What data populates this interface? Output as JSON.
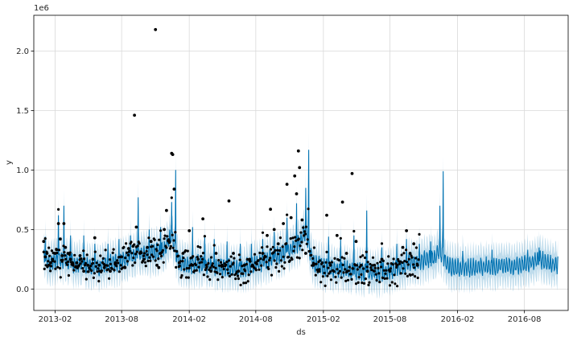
{
  "chart_data": {
    "type": "line",
    "title": "",
    "xlabel": "ds",
    "ylabel": "y",
    "scale_label": "1e6",
    "xlim": [
      "2012-12-05",
      "2016-11-28"
    ],
    "ylim": [
      -0.18,
      2.3
    ],
    "x_tick_labels": [
      "2013-02",
      "2013-08",
      "2014-02",
      "2014-08",
      "2015-02",
      "2015-08",
      "2016-02",
      "2016-08"
    ],
    "x_tick_dates": [
      "2013-02-01",
      "2013-08-01",
      "2014-02-01",
      "2014-08-01",
      "2015-02-01",
      "2015-08-01",
      "2016-02-01",
      "2016-08-01"
    ],
    "y_tick_values": [
      0.0,
      0.5,
      1.0,
      1.5,
      2.0
    ],
    "y_tick_labels": [
      "0.0",
      "0.5",
      "1.0",
      "1.5",
      "2.0"
    ],
    "grid": true,
    "colors": {
      "forecast": "#0072B2",
      "interval": "#0072B2",
      "actual": "#000000"
    },
    "series": [
      {
        "kind": "forecast",
        "points": [
          [
            "2013-01-01",
            0.27
          ],
          [
            "2013-01-15",
            0.22
          ],
          [
            "2013-02-01",
            0.24
          ],
          [
            "2013-02-15",
            0.25
          ],
          [
            "2013-03-01",
            0.24
          ],
          [
            "2013-03-15",
            0.22
          ],
          [
            "2013-04-01",
            0.21
          ],
          [
            "2013-04-15",
            0.21
          ],
          [
            "2013-05-01",
            0.2
          ],
          [
            "2013-05-15",
            0.2
          ],
          [
            "2013-06-01",
            0.19
          ],
          [
            "2013-06-15",
            0.2
          ],
          [
            "2013-07-01",
            0.21
          ],
          [
            "2013-07-15",
            0.22
          ],
          [
            "2013-08-01",
            0.24
          ],
          [
            "2013-08-15",
            0.26
          ],
          [
            "2013-09-01",
            0.28
          ],
          [
            "2013-09-15",
            0.29
          ],
          [
            "2013-10-01",
            0.3
          ],
          [
            "2013-10-15",
            0.3
          ],
          [
            "2013-11-01",
            0.31
          ],
          [
            "2013-11-15",
            0.32
          ],
          [
            "2013-12-01",
            0.36
          ],
          [
            "2013-12-15",
            0.45
          ],
          [
            "2014-01-01",
            0.25
          ],
          [
            "2014-01-15",
            0.21
          ],
          [
            "2014-02-01",
            0.2
          ],
          [
            "2014-02-15",
            0.21
          ],
          [
            "2014-03-01",
            0.21
          ],
          [
            "2014-03-15",
            0.2
          ],
          [
            "2014-04-01",
            0.2
          ],
          [
            "2014-04-15",
            0.19
          ],
          [
            "2014-05-01",
            0.18
          ],
          [
            "2014-05-15",
            0.18
          ],
          [
            "2014-06-01",
            0.17
          ],
          [
            "2014-06-15",
            0.17
          ],
          [
            "2014-07-01",
            0.18
          ],
          [
            "2014-07-15",
            0.19
          ],
          [
            "2014-08-01",
            0.2
          ],
          [
            "2014-08-15",
            0.22
          ],
          [
            "2014-09-01",
            0.25
          ],
          [
            "2014-09-15",
            0.27
          ],
          [
            "2014-10-01",
            0.29
          ],
          [
            "2014-10-15",
            0.3
          ],
          [
            "2014-11-01",
            0.33
          ],
          [
            "2014-11-15",
            0.36
          ],
          [
            "2014-12-01",
            0.4
          ],
          [
            "2014-12-15",
            0.5
          ],
          [
            "2015-01-01",
            0.25
          ],
          [
            "2015-01-15",
            0.2
          ],
          [
            "2015-02-01",
            0.18
          ],
          [
            "2015-02-15",
            0.17
          ],
          [
            "2015-03-01",
            0.17
          ],
          [
            "2015-03-15",
            0.16
          ],
          [
            "2015-04-01",
            0.16
          ],
          [
            "2015-04-15",
            0.15
          ],
          [
            "2015-05-01",
            0.15
          ],
          [
            "2015-05-15",
            0.15
          ],
          [
            "2015-06-01",
            0.14
          ],
          [
            "2015-06-15",
            0.14
          ],
          [
            "2015-07-01",
            0.14
          ],
          [
            "2015-07-15",
            0.14
          ],
          [
            "2015-08-01",
            0.15
          ],
          [
            "2015-08-15",
            0.17
          ],
          [
            "2015-09-01",
            0.19
          ],
          [
            "2015-09-15",
            0.21
          ],
          [
            "2015-10-01",
            0.22
          ],
          [
            "2015-10-15",
            0.23
          ],
          [
            "2015-11-01",
            0.24
          ],
          [
            "2015-11-15",
            0.25
          ],
          [
            "2015-12-01",
            0.27
          ],
          [
            "2015-12-15",
            0.32
          ],
          [
            "2016-01-01",
            0.22
          ],
          [
            "2016-01-15",
            0.19
          ],
          [
            "2016-02-01",
            0.18
          ],
          [
            "2016-02-15",
            0.18
          ],
          [
            "2016-03-01",
            0.18
          ],
          [
            "2016-03-15",
            0.18
          ],
          [
            "2016-04-01",
            0.19
          ],
          [
            "2016-04-15",
            0.19
          ],
          [
            "2016-05-01",
            0.19
          ],
          [
            "2016-05-15",
            0.19
          ],
          [
            "2016-06-01",
            0.2
          ],
          [
            "2016-06-15",
            0.2
          ],
          [
            "2016-07-01",
            0.19
          ],
          [
            "2016-07-15",
            0.2
          ],
          [
            "2016-08-01",
            0.21
          ],
          [
            "2016-08-15",
            0.22
          ],
          [
            "2016-09-01",
            0.24
          ],
          [
            "2016-09-15",
            0.25
          ],
          [
            "2016-10-01",
            0.23
          ],
          [
            "2016-10-15",
            0.21
          ],
          [
            "2016-10-31",
            0.2
          ]
        ],
        "spikes": [
          [
            "2013-01-05",
            0.44
          ],
          [
            "2013-02-10",
            0.62
          ],
          [
            "2013-02-25",
            0.7
          ],
          [
            "2013-03-15",
            0.45
          ],
          [
            "2013-04-20",
            0.45
          ],
          [
            "2013-05-20",
            0.38
          ],
          [
            "2013-06-25",
            0.38
          ],
          [
            "2013-07-25",
            0.42
          ],
          [
            "2013-08-25",
            0.45
          ],
          [
            "2013-09-15",
            0.77
          ],
          [
            "2013-10-15",
            0.5
          ],
          [
            "2013-11-15",
            0.52
          ],
          [
            "2013-12-15",
            0.73
          ],
          [
            "2013-12-26",
            1.0
          ],
          [
            "2014-02-10",
            0.52
          ],
          [
            "2014-03-15",
            0.45
          ],
          [
            "2014-04-10",
            0.42
          ],
          [
            "2014-05-15",
            0.4
          ],
          [
            "2014-06-20",
            0.38
          ],
          [
            "2014-07-20",
            0.38
          ],
          [
            "2014-08-20",
            0.42
          ],
          [
            "2014-09-20",
            0.48
          ],
          [
            "2014-10-25",
            0.6
          ],
          [
            "2014-11-20",
            0.72
          ],
          [
            "2014-12-15",
            0.85
          ],
          [
            "2014-12-23",
            1.17
          ],
          [
            "2015-02-15",
            0.44
          ],
          [
            "2015-03-20",
            0.42
          ],
          [
            "2015-04-25",
            0.45
          ],
          [
            "2015-05-30",
            0.66
          ],
          [
            "2015-07-10",
            0.35
          ],
          [
            "2015-08-20",
            0.38
          ],
          [
            "2015-09-15",
            0.42
          ],
          [
            "2015-10-20",
            0.38
          ],
          [
            "2015-11-20",
            0.4
          ],
          [
            "2015-12-15",
            0.7
          ],
          [
            "2015-12-24",
            0.99
          ],
          [
            "2016-02-15",
            0.32
          ],
          [
            "2016-05-05",
            0.33
          ],
          [
            "2016-08-10",
            0.33
          ],
          [
            "2016-09-10",
            0.35
          ]
        ]
      },
      {
        "kind": "actual",
        "points": [
          [
            "2013-01-01",
            0.4
          ],
          [
            "2013-01-05",
            0.27
          ],
          [
            "2013-01-10",
            0.3
          ],
          [
            "2013-01-15",
            0.2
          ],
          [
            "2013-01-20",
            0.22
          ],
          [
            "2013-01-25",
            0.25
          ],
          [
            "2013-02-01",
            0.3
          ],
          [
            "2013-02-05",
            0.33
          ],
          [
            "2013-02-10",
            0.55
          ],
          [
            "2013-02-15",
            0.42
          ],
          [
            "2013-02-20",
            0.28
          ],
          [
            "2013-02-25",
            0.55
          ],
          [
            "2013-03-01",
            0.35
          ],
          [
            "2013-03-08",
            0.3
          ],
          [
            "2013-03-15",
            0.25
          ],
          [
            "2013-03-22",
            0.2
          ],
          [
            "2013-04-01",
            0.22
          ],
          [
            "2013-04-10",
            0.28
          ],
          [
            "2013-04-20",
            0.15
          ],
          [
            "2013-05-01",
            0.2
          ],
          [
            "2013-05-15",
            0.25
          ],
          [
            "2013-05-20",
            0.43
          ],
          [
            "2013-06-01",
            0.2
          ],
          [
            "2013-06-15",
            0.18
          ],
          [
            "2013-07-01",
            0.15
          ],
          [
            "2013-07-15",
            0.22
          ],
          [
            "2013-08-01",
            0.27
          ],
          [
            "2013-08-10",
            0.18
          ],
          [
            "2013-08-20",
            0.34
          ],
          [
            "2013-09-01",
            0.36
          ],
          [
            "2013-09-05",
            1.46
          ],
          [
            "2013-09-10",
            0.52
          ],
          [
            "2013-09-20",
            0.3
          ],
          [
            "2013-10-01",
            0.25
          ],
          [
            "2013-10-10",
            0.35
          ],
          [
            "2013-10-20",
            0.4
          ],
          [
            "2013-11-01",
            2.18
          ],
          [
            "2013-11-05",
            0.2
          ],
          [
            "2013-11-10",
            0.18
          ],
          [
            "2013-11-15",
            0.3
          ],
          [
            "2013-11-25",
            0.5
          ],
          [
            "2013-12-01",
            0.66
          ],
          [
            "2013-12-08",
            0.4
          ],
          [
            "2013-12-15",
            1.14
          ],
          [
            "2013-12-18",
            1.13
          ],
          [
            "2013-12-22",
            0.84
          ],
          [
            "2014-01-05",
            0.22
          ],
          [
            "2014-01-15",
            0.3
          ],
          [
            "2014-02-01",
            0.49
          ],
          [
            "2014-02-10",
            0.2
          ],
          [
            "2014-02-25",
            0.25
          ],
          [
            "2014-03-10",
            0.59
          ],
          [
            "2014-03-20",
            0.2
          ],
          [
            "2014-04-01",
            0.15
          ],
          [
            "2014-04-15",
            0.3
          ],
          [
            "2014-05-01",
            0.2
          ],
          [
            "2014-05-20",
            0.74
          ],
          [
            "2014-06-01",
            0.3
          ],
          [
            "2014-06-15",
            0.15
          ],
          [
            "2014-07-01",
            0.2
          ],
          [
            "2014-07-15",
            0.25
          ],
          [
            "2014-08-01",
            0.22
          ],
          [
            "2014-08-20",
            0.3
          ],
          [
            "2014-09-01",
            0.45
          ],
          [
            "2014-09-10",
            0.67
          ],
          [
            "2014-09-20",
            0.5
          ],
          [
            "2014-10-01",
            0.38
          ],
          [
            "2014-10-15",
            0.55
          ],
          [
            "2014-10-25",
            0.88
          ],
          [
            "2014-11-05",
            0.6
          ],
          [
            "2014-11-15",
            0.95
          ],
          [
            "2014-11-20",
            0.8
          ],
          [
            "2014-11-25",
            1.16
          ],
          [
            "2014-11-28",
            1.02
          ],
          [
            "2014-12-05",
            0.58
          ],
          [
            "2014-12-15",
            0.3
          ],
          [
            "2015-01-05",
            0.2
          ],
          [
            "2015-01-20",
            0.15
          ],
          [
            "2015-02-10",
            0.62
          ],
          [
            "2015-02-20",
            0.2
          ],
          [
            "2015-03-10",
            0.45
          ],
          [
            "2015-03-25",
            0.73
          ],
          [
            "2015-04-05",
            0.3
          ],
          [
            "2015-04-20",
            0.97
          ],
          [
            "2015-05-01",
            0.4
          ],
          [
            "2015-05-15",
            0.2
          ],
          [
            "2015-06-01",
            0.15
          ],
          [
            "2015-06-20",
            0.2
          ],
          [
            "2015-07-10",
            0.25
          ],
          [
            "2015-08-01",
            0.15
          ],
          [
            "2015-08-20",
            0.2
          ],
          [
            "2015-09-05",
            0.35
          ],
          [
            "2015-09-15",
            0.49
          ],
          [
            "2015-09-25",
            0.3
          ],
          [
            "2015-10-05",
            0.38
          ],
          [
            "2015-10-15",
            0.2
          ]
        ]
      }
    ]
  }
}
